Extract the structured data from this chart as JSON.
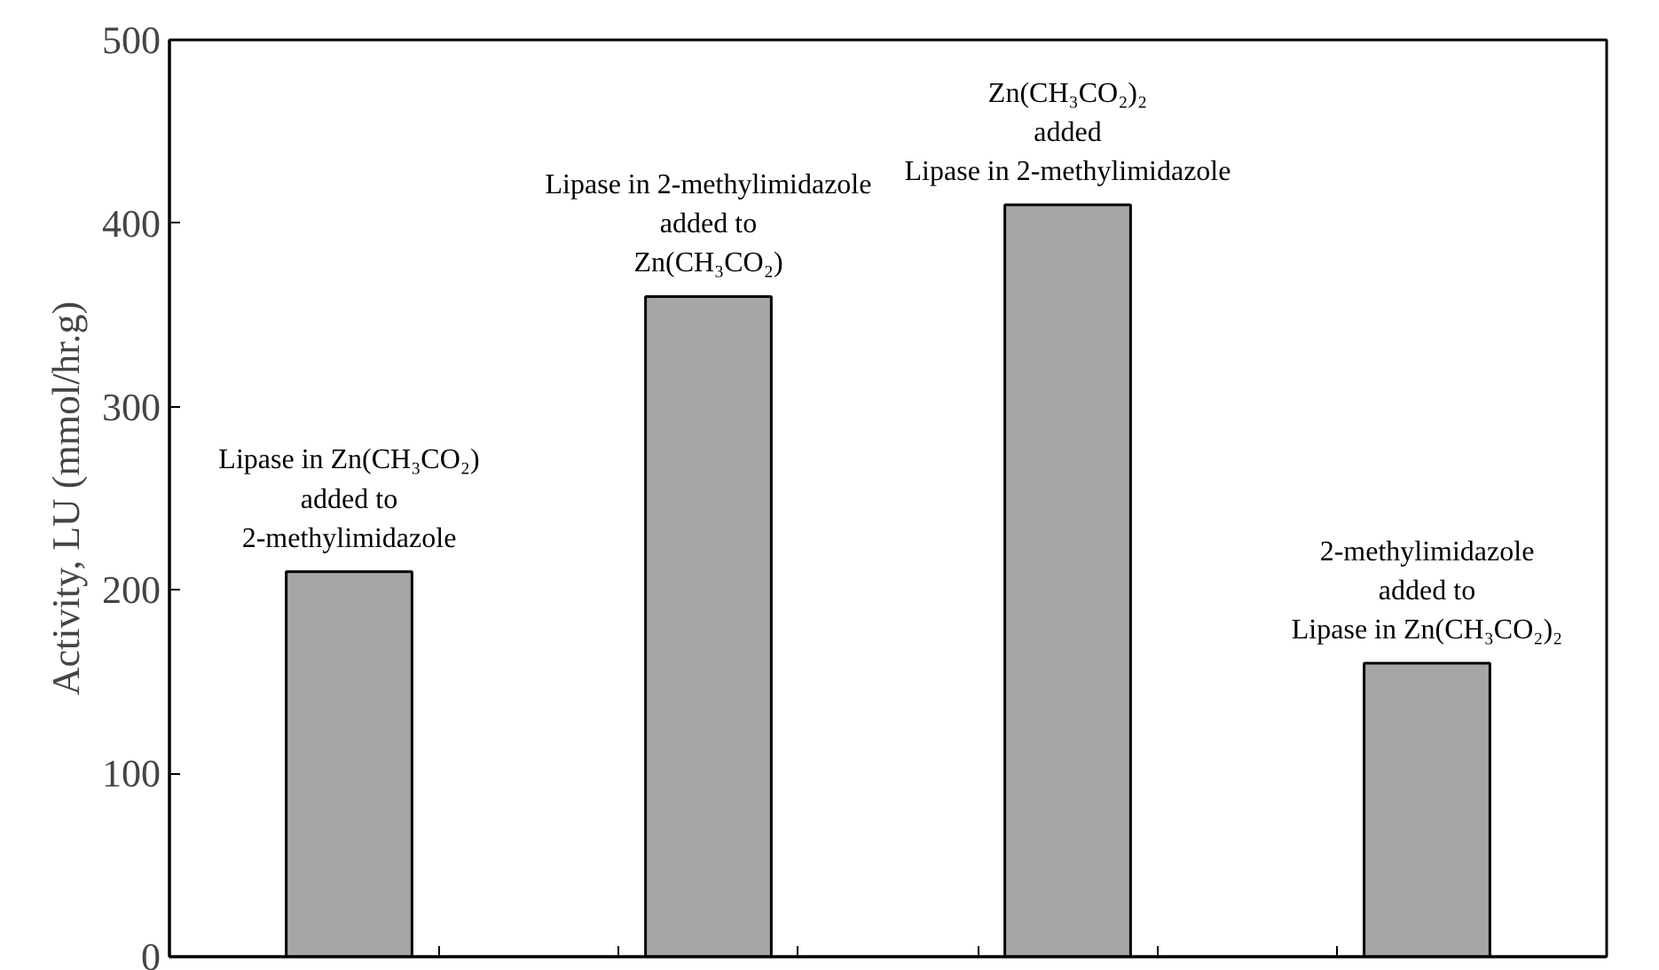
{
  "chart_data": {
    "type": "bar",
    "ylabel": "Activity, LU (mmol/hr.g)",
    "categories": [
      null,
      null,
      null,
      null,
      null,
      null,
      null
    ],
    "values": [
      210,
      null,
      360,
      null,
      410,
      null,
      160
    ],
    "color": "#a6a6a6",
    "ylim": [
      0,
      500
    ],
    "yticks": [
      0,
      100,
      200,
      300,
      400,
      500
    ],
    "grid": false,
    "annotations": [
      "Lipase in Zn(CH₃CO₂)\nadded to\n2-methylimidazole",
      "Lipase in 2-methylimidazole\nadded to\nZn(CH₃CO₂)",
      "Zn(CH₃CO₂)₂\nadded\nLipase in 2-methylimidazole",
      "2-methylimidazole\nadded to\nLipase in Zn(CH₃CO₂)₂"
    ]
  }
}
